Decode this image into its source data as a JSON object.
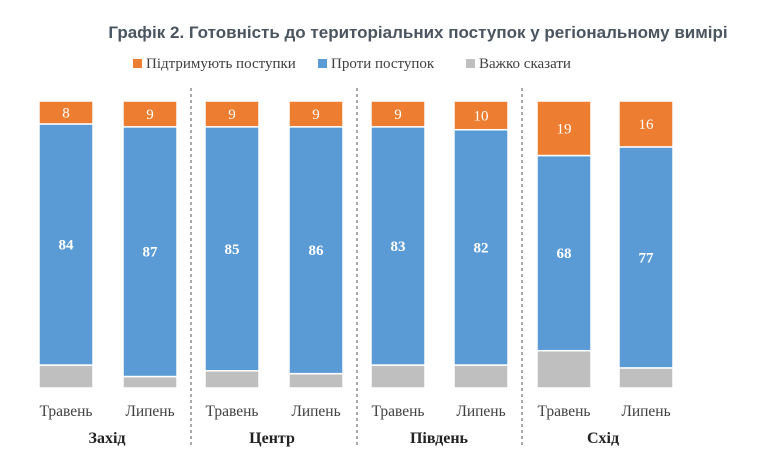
{
  "chart_data": {
    "type": "bar",
    "stacked": true,
    "title": "Графік 2. Готовність до територіальних поступок у регіональному вимірі",
    "legend_position": "top",
    "series": [
      {
        "name": "Підтримують поступки",
        "color": "#ED7D31",
        "values": [
          8,
          9,
          9,
          9,
          9,
          10,
          19,
          16
        ]
      },
      {
        "name": "Проти поступок",
        "color": "#5B9BD5",
        "values": [
          84,
          87,
          85,
          86,
          83,
          82,
          68,
          77
        ]
      },
      {
        "name": "Важко сказати",
        "color": "#BFBFBF",
        "values": [
          8,
          4,
          6,
          5,
          8,
          8,
          13,
          7
        ]
      }
    ],
    "categories": [
      "Травень",
      "Липень",
      "Травень",
      "Липень",
      "Травень",
      "Липень",
      "Травень",
      "Липень"
    ],
    "groups": [
      {
        "label": "Захід",
        "categories": [
          "Травень",
          "Липень"
        ]
      },
      {
        "label": "Центр",
        "categories": [
          "Травень",
          "Липень"
        ]
      },
      {
        "label": "Південь",
        "categories": [
          "Травень",
          "Липень"
        ]
      },
      {
        "label": "Схід",
        "categories": [
          "Травень",
          "Липень"
        ]
      }
    ],
    "ylim": [
      0,
      100
    ],
    "grid": false
  }
}
